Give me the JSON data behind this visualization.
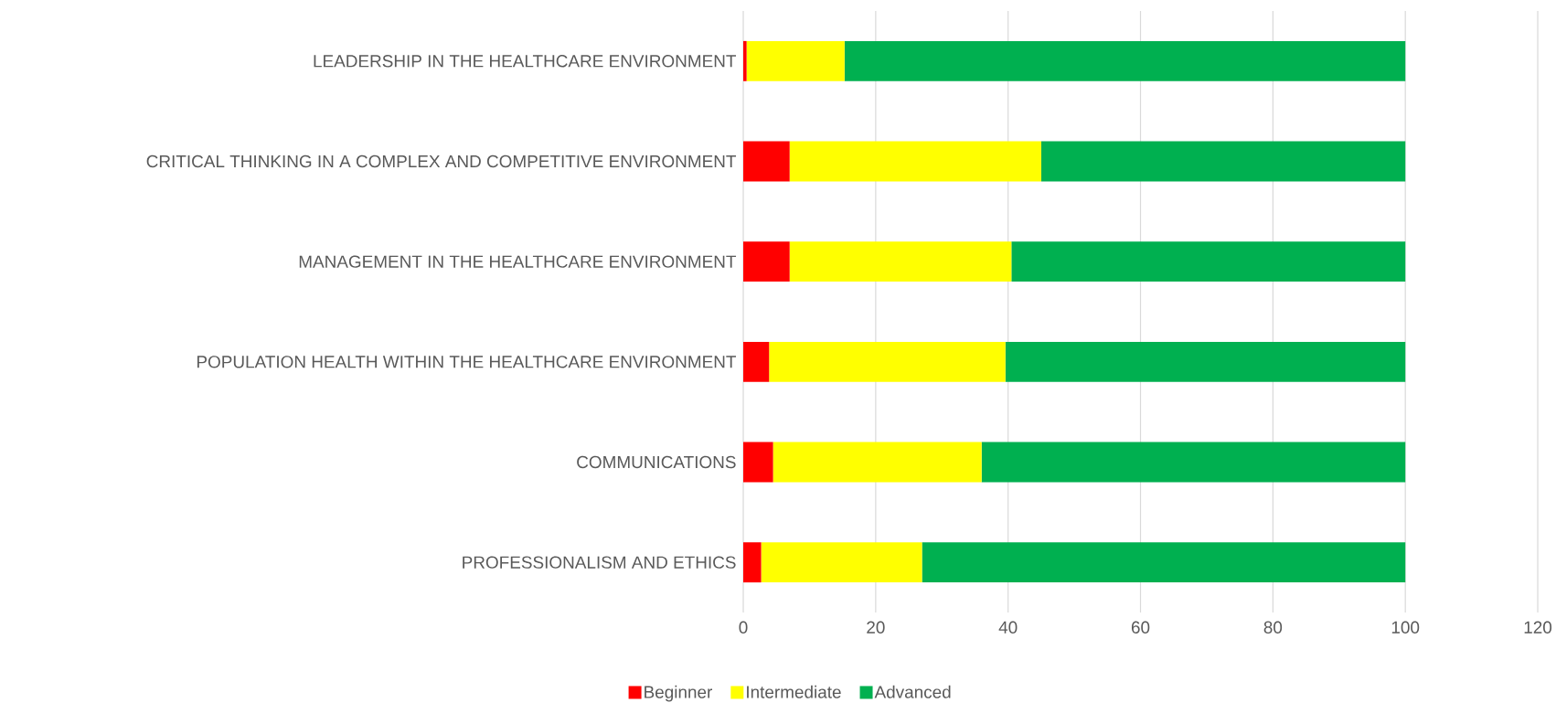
{
  "chart_data": {
    "type": "bar",
    "orientation": "horizontal",
    "stacked": true,
    "categories": [
      "LEADERSHIP IN THE HEALTHCARE ENVIRONMENT",
      "CRITICAL THINKING IN A COMPLEX AND COMPETITIVE ENVIRONMENT",
      "MANAGEMENT IN THE HEALTHCARE ENVIRONMENT",
      "POPULATION HEALTH WITHIN THE HEALTHCARE ENVIRONMENT",
      "COMMUNICATIONS",
      "PROFESSIONALISM AND ETHICS"
    ],
    "series": [
      {
        "name": "Beginner",
        "color": "#ff0000",
        "values": [
          0.5,
          7,
          7,
          3.9,
          4.5,
          2.7
        ]
      },
      {
        "name": "Intermediate",
        "color": "#ffff00",
        "values": [
          14.8,
          38,
          33.5,
          35.7,
          31.5,
          24.3
        ]
      },
      {
        "name": "Advanced",
        "color": "#00b050",
        "values": [
          84.7,
          55,
          59.5,
          60.4,
          64,
          73
        ]
      }
    ],
    "xlim": [
      0,
      120
    ],
    "xticks": [
      0,
      20,
      40,
      60,
      80,
      100,
      120
    ],
    "grid": "x",
    "legend": "bottom"
  }
}
